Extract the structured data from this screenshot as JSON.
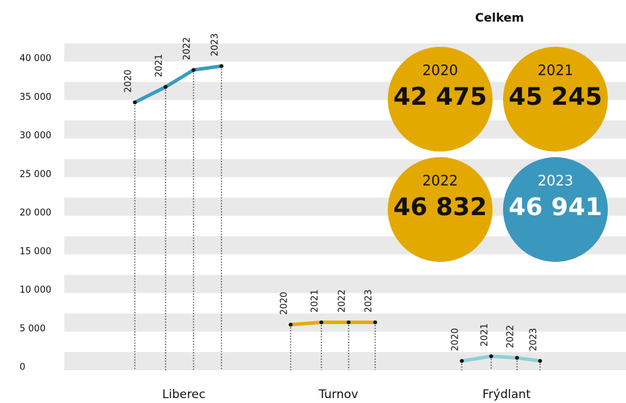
{
  "chart_data": {
    "type": "line",
    "ylim": [
      0,
      40000
    ],
    "yticks": [
      0,
      {
        "value": 5000,
        "label": "5 000"
      },
      {
        "value": 10000,
        "label": "10 000"
      },
      {
        "value": 15000,
        "label": "15 000"
      },
      {
        "value": 20000,
        "label": "20 000"
      },
      {
        "value": 25000,
        "label": "25 000"
      },
      {
        "value": 30000,
        "label": "30 000"
      },
      {
        "value": 35000,
        "label": "35 000"
      },
      {
        "value": 40000,
        "label": "40 000"
      }
    ],
    "grid": true,
    "series": [
      {
        "name": "Liberec",
        "color": "#3b9bc0",
        "x": [
          "2020",
          "2021",
          "2022",
          "2023"
        ],
        "values": [
          34700,
          36700,
          38900,
          39400
        ]
      },
      {
        "name": "Turnov",
        "color": "#e6ac00",
        "x": [
          "2020",
          "2021",
          "2022",
          "2023"
        ],
        "values": [
          5900,
          6200,
          6200,
          6200
        ]
      },
      {
        "name": "Frýdlant",
        "color": "#8fd0d8",
        "x": [
          "2020",
          "2021",
          "2022",
          "2023"
        ],
        "values": [
          1200,
          1800,
          1600,
          1200
        ]
      }
    ],
    "totals": {
      "title": "Celkem",
      "years": [
        "2020",
        "2021",
        "2022",
        "2023"
      ],
      "values": [
        42475,
        45245,
        46832,
        46941
      ],
      "value_labels": [
        "42 475",
        "45 245",
        "46 832",
        "46 941"
      ],
      "colors": [
        "#e3a900",
        "#e3a900",
        "#e3a900",
        "#3a97bd"
      ]
    }
  }
}
